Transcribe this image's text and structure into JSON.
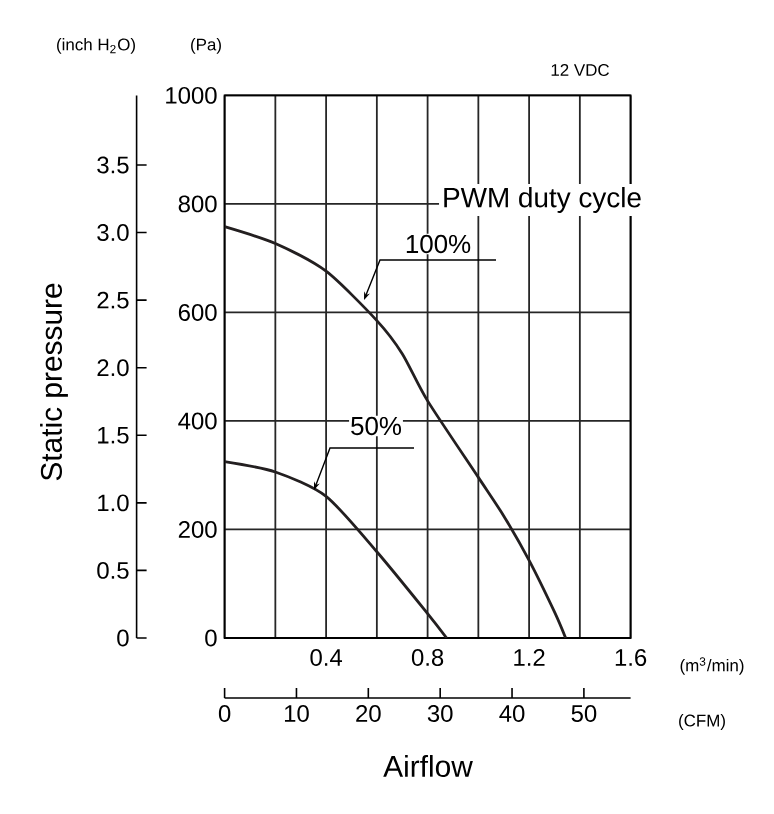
{
  "chart_data": {
    "type": "line",
    "xlabel": "Airflow",
    "y2label": "Static pressure",
    "legend_title": "PWM duty cycle",
    "annotations": [
      "12 VDC",
      "(inch H$_{2}$O)",
      "(Pa)",
      "(m$^{3}$/min)",
      "(CFM)"
    ],
    "series": [
      {
        "name": "100%",
        "color": "#231f20",
        "x": [
          0,
          0.2,
          0.4,
          0.6,
          0.7,
          0.8,
          1.0,
          1.1,
          1.2,
          1.3,
          1.344
        ],
        "values": [
          758,
          727,
          676,
          585,
          524,
          437,
          296,
          225,
          143,
          48,
          0
        ]
      },
      {
        "name": "50%",
        "color": "#231f20",
        "x": [
          0,
          0.2,
          0.4,
          0.6,
          0.8,
          0.875
        ],
        "values": [
          325,
          306,
          261,
          159,
          45,
          0
        ]
      }
    ],
    "xlim": [
      0,
      1.6
    ],
    "ylim": [
      0,
      1000
    ],
    "xticks": [
      {
        "value": 0,
        "label": null
      },
      {
        "value": 0.2,
        "label": null
      },
      0.4,
      {
        "value": 0.6,
        "label": null
      },
      0.8,
      {
        "value": 1.0,
        "label": null
      },
      1.2,
      {
        "value": 1.4,
        "label": null
      },
      1.6
    ],
    "yticks": [
      0,
      200,
      400,
      600,
      800,
      1000
    ],
    "y2lim": [
      0,
      4.015
    ],
    "y2ticks": [
      0,
      0.5,
      {
        "value": 1,
        "label": "1.0"
      },
      1.5,
      {
        "value": 2,
        "label": "2.0"
      },
      2.5,
      {
        "value": 3,
        "label": "3.0"
      },
      3.5
    ],
    "x2lim": [
      0,
      56.5
    ],
    "x2ticks": [
      0,
      10,
      20,
      30,
      40,
      50
    ],
    "grid": true,
    "marker": "none",
    "line_style": "solid"
  }
}
